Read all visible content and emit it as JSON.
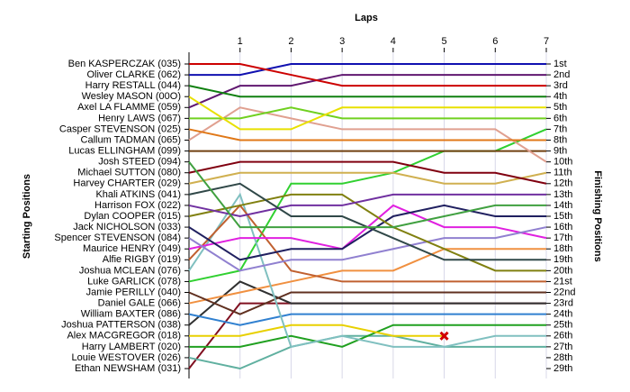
{
  "chart_data": {
    "type": "line",
    "title": "Laps",
    "y_label": "Starting Positions",
    "y2_label": "Finishing Positions",
    "x": [
      0,
      1,
      2,
      3,
      4,
      5,
      6,
      7
    ],
    "xlim": [
      0,
      7
    ],
    "xticks": [
      1,
      2,
      3,
      4,
      5,
      6,
      7
    ],
    "ylim": [
      1,
      29
    ],
    "grid": true,
    "finish_labels": [
      "1st",
      "2nd",
      "3rd",
      "4th",
      "5th",
      "6th",
      "7th",
      "8th",
      "9th",
      "10th",
      "11th",
      "12th",
      "13th",
      "14th",
      "15th",
      "16th",
      "17th",
      "18th",
      "19th",
      "20th",
      "21st",
      "22nd",
      "23rd",
      "24th",
      "25th",
      "26th",
      "27th",
      "28th",
      "29th"
    ],
    "series": [
      {
        "name": "Ben KASPERCZAK (035)",
        "color": "#cc0000",
        "values": [
          1,
          1,
          2,
          3,
          3,
          3,
          3,
          3
        ]
      },
      {
        "name": "Oliver CLARKE (062)",
        "color": "#1010b0",
        "values": [
          2,
          2,
          1,
          1,
          1,
          1,
          1,
          1
        ]
      },
      {
        "name": "Harry RESTALL (044)",
        "color": "#108010",
        "values": [
          3,
          4,
          4,
          4,
          4,
          4,
          4,
          4
        ]
      },
      {
        "name": "Wesley MASON (00O)",
        "color": "#e8e000",
        "values": [
          4,
          7,
          7,
          5,
          5,
          5,
          5,
          5
        ]
      },
      {
        "name": "Axel LA FLAMME (059)",
        "color": "#601870",
        "values": [
          5,
          3,
          3,
          2,
          2,
          2,
          2,
          2
        ]
      },
      {
        "name": "Henry LAWS (067)",
        "color": "#70d020",
        "values": [
          6,
          6,
          5,
          6,
          6,
          6,
          6,
          6
        ]
      },
      {
        "name": "Casper STEVENSON (025)",
        "color": "#e07818",
        "values": [
          7,
          8,
          8,
          8,
          8,
          8,
          8,
          8
        ]
      },
      {
        "name": "Callum TADMAN (065)",
        "color": "#e0a090",
        "values": [
          8,
          5,
          6,
          7,
          7,
          7,
          7,
          10
        ]
      },
      {
        "name": "Lucas ELLINGHAM (099)",
        "color": "#704010",
        "values": [
          9,
          9,
          9,
          9,
          9,
          9,
          9,
          9
        ]
      },
      {
        "name": "Josh STEED (094)",
        "color": "#40a040",
        "values": [
          10,
          16,
          16,
          16,
          16,
          15,
          14,
          14
        ]
      },
      {
        "name": "Michael SUTTON (080)",
        "color": "#800010",
        "values": [
          11,
          10,
          10,
          10,
          10,
          11,
          11,
          12
        ]
      },
      {
        "name": "Harvey CHARTER (029)",
        "color": "#d0b050",
        "values": [
          12,
          11,
          11,
          11,
          11,
          12,
          12,
          11
        ]
      },
      {
        "name": "Khali ATKINS (041)",
        "color": "#304848",
        "values": [
          13,
          12,
          15,
          15,
          17,
          19,
          19,
          19
        ]
      },
      {
        "name": "Harrison FOX (022)",
        "color": "#7030a0",
        "values": [
          14,
          15,
          14,
          14,
          13,
          13,
          13,
          13
        ]
      },
      {
        "name": "Dylan COOPER (015)",
        "color": "#808010",
        "values": [
          15,
          14,
          13,
          13,
          16,
          18,
          20,
          20
        ]
      },
      {
        "name": "Jack NICHOLSON (033)",
        "color": "#202060",
        "values": [
          16,
          19,
          18,
          18,
          15,
          14,
          15,
          15
        ]
      },
      {
        "name": "Spencer STEVENSON (084)",
        "color": "#9080d0",
        "values": [
          17,
          20,
          19,
          19,
          18,
          17,
          17,
          16
        ]
      },
      {
        "name": "Maurice HENRY (049)",
        "color": "#e020e0",
        "values": [
          18,
          17,
          17,
          18,
          14,
          16,
          16,
          17
        ]
      },
      {
        "name": "Alfie RIGBY (019)",
        "color": "#c06030",
        "values": [
          19,
          14,
          20,
          21,
          21,
          21,
          21,
          21
        ]
      },
      {
        "name": "Joshua MCLEAN (076)",
        "color": "#80c0c0",
        "values": [
          20,
          13,
          27,
          26,
          27,
          27,
          26,
          26
        ]
      },
      {
        "name": "Luke GARLICK (078)",
        "color": "#30d030",
        "values": [
          21,
          20,
          12,
          12,
          11,
          9,
          9,
          7
        ]
      },
      {
        "name": "Jamie PERILLY (040)",
        "color": "#603020",
        "values": [
          22,
          24,
          22,
          22,
          22,
          22,
          22,
          22
        ]
      },
      {
        "name": "Daniel GALE (066)",
        "color": "#f09040",
        "values": [
          23,
          22,
          21,
          20,
          20,
          18,
          18,
          18
        ]
      },
      {
        "name": "William BAXTER (086)",
        "color": "#3080d0",
        "values": [
          24,
          25,
          24,
          24,
          24,
          24,
          24,
          24
        ]
      },
      {
        "name": "Joshua PATTERSON (038)",
        "color": "#303030",
        "values": [
          25,
          21,
          23,
          23,
          23,
          23,
          23,
          23
        ]
      },
      {
        "name": "Alex MACGREGOR (018)",
        "color": "#e8d000",
        "values": [
          26,
          26,
          25,
          25,
          26,
          26,
          null,
          null
        ]
      },
      {
        "name": "Harry LAMBERT (020)",
        "color": "#20a020",
        "values": [
          27,
          27,
          26,
          27,
          25,
          25,
          25,
          25
        ]
      },
      {
        "name": "Louie WESTOVER (026)",
        "color": "#60b0a0",
        "values": [
          28,
          29,
          27,
          26,
          26,
          27,
          27,
          27
        ]
      },
      {
        "name": "Ethan NEWSHAM (031)",
        "color": "#801020",
        "values": [
          29,
          23,
          23,
          23,
          23,
          23,
          23,
          23
        ]
      }
    ]
  }
}
